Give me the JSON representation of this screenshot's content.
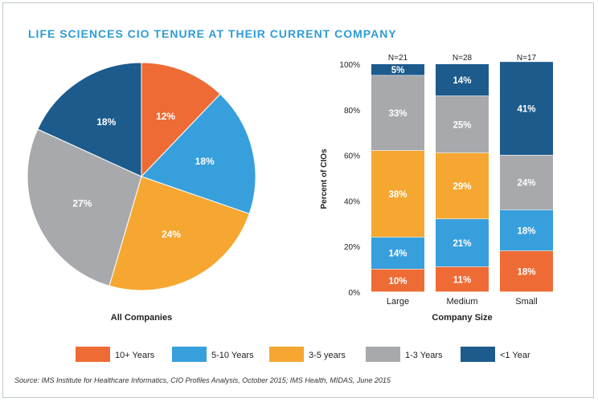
{
  "title": "LIFE SCIENCES CIO TENURE AT THEIR CURRENT COMPANY",
  "source": "Source: IMS Institute for Healthcare Informatics, CIO Profiles Analysis, October 2015; IMS Health, MIDAS, June 2015",
  "colors": {
    "10+ Years": "#ee6b35",
    "5-10 Years": "#389fdd",
    "3-5 years": "#f5a731",
    "1-3 Years": "#a7a9ac",
    "<1 Year": "#1d5b8c"
  },
  "chart_data": [
    {
      "type": "pie",
      "title": "All Companies",
      "slices": [
        {
          "label": "10+ Years",
          "value": 12,
          "display": "12%"
        },
        {
          "label": "5-10 Years",
          "value": 18,
          "display": "18%"
        },
        {
          "label": "3-5 years",
          "value": 24,
          "display": "24%"
        },
        {
          "label": "1-3 Years",
          "value": 27,
          "display": "27%"
        },
        {
          "label": "<1 Year",
          "value": 18,
          "display": "18%"
        }
      ]
    },
    {
      "type": "bar",
      "stacked": true,
      "xlabel": "Company Size",
      "ylabel": "Percent of CIOs",
      "ylim": [
        0,
        100
      ],
      "yticks": [
        "0%",
        "20%",
        "40%",
        "60%",
        "80%",
        "100%"
      ],
      "categories": [
        "Large",
        "Medium",
        "Small"
      ],
      "n_labels": [
        "N=21",
        "N=28",
        "N=17"
      ],
      "series": [
        {
          "name": "10+ Years",
          "values": [
            10,
            11,
            18
          ]
        },
        {
          "name": "5-10 Years",
          "values": [
            14,
            21,
            18
          ]
        },
        {
          "name": "3-5 years",
          "values": [
            38,
            29,
            0
          ]
        },
        {
          "name": "1-3 Years",
          "values": [
            33,
            25,
            24
          ]
        },
        {
          "name": "<1 Year",
          "values": [
            5,
            14,
            41
          ]
        }
      ]
    }
  ],
  "legend": [
    "10+ Years",
    "5-10 Years",
    "3-5 years",
    "1-3 Years",
    "<1 Year"
  ]
}
